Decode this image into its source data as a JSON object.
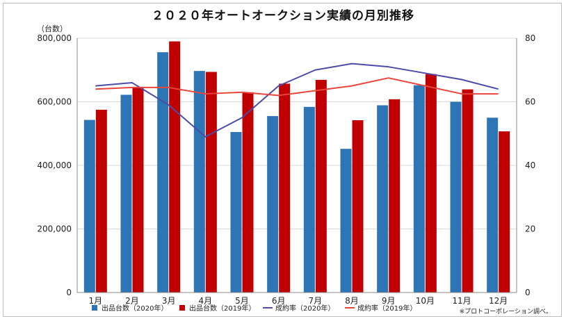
{
  "chart_data": {
    "type": "bar",
    "title": "２０２０年オートオークション実績の月別推移",
    "ylabel": "（台数）",
    "categories": [
      "1月",
      "2月",
      "3月",
      "4月",
      "5月",
      "6月",
      "7月",
      "8月",
      "9月",
      "10月",
      "11月",
      "12月"
    ],
    "ylim": [
      0,
      800000
    ],
    "y_ticks": [
      "0",
      "200,000",
      "400,000",
      "600,000",
      "800,000"
    ],
    "y2lim": [
      0,
      80
    ],
    "y2_ticks": [
      "0",
      "20",
      "40",
      "60",
      "80"
    ],
    "series": [
      {
        "name": "出品台数（2020年）",
        "kind": "bar",
        "axis": "left",
        "color": "#2e75b6",
        "values": [
          543000,
          622000,
          756000,
          697000,
          505000,
          555000,
          584000,
          452000,
          589000,
          652000,
          600000,
          550000
        ]
      },
      {
        "name": "出品台数（2019年）",
        "kind": "bar",
        "axis": "left",
        "color": "#c00000",
        "values": [
          575000,
          644000,
          790000,
          694000,
          630000,
          657000,
          669000,
          542000,
          608000,
          687000,
          639000,
          507000
        ]
      },
      {
        "name": "成約率（2020年）",
        "kind": "line",
        "axis": "right",
        "color": "#4b4ba8",
        "values": [
          65,
          66,
          59,
          49,
          55,
          65,
          70,
          72,
          71,
          69,
          67,
          64
        ]
      },
      {
        "name": "成約率（2019年）",
        "kind": "line",
        "axis": "right",
        "color": "#e8453c",
        "values": [
          64,
          64.5,
          64.5,
          62.5,
          63,
          62,
          63.5,
          65,
          67.5,
          65,
          62.5,
          62.5
        ]
      }
    ],
    "legend_position": "bottom",
    "note": "※プロトコーポレーション調べ。",
    "grid": true
  }
}
